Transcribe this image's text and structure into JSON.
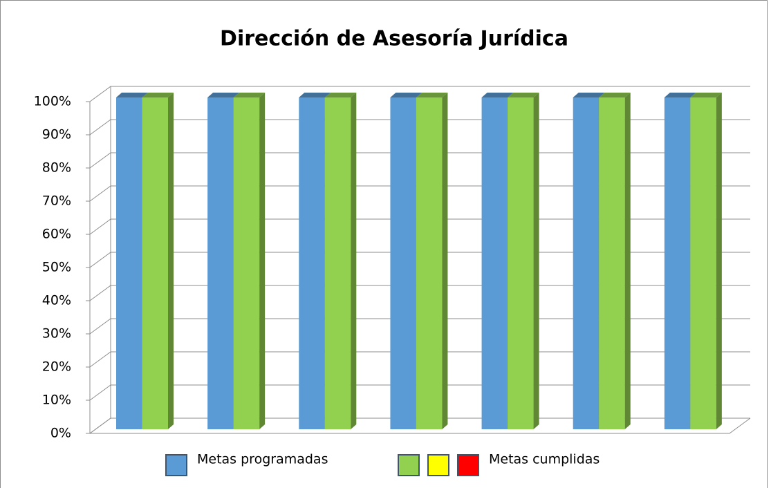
{
  "chart_data": {
    "type": "bar3d",
    "title": "Dirección de Asesoría Jurídica",
    "categories": [
      null,
      null,
      null,
      null,
      null,
      null,
      null
    ],
    "series": [
      {
        "name": "Metas programadas",
        "color": "#5b9bd5",
        "values": [
          100,
          100,
          100,
          100,
          100,
          100,
          100
        ]
      },
      {
        "name": "Metas cumplidas",
        "color": "#92d050",
        "extra_legend_colors": [
          "#ffff00",
          "#ff0000"
        ],
        "values": [
          100,
          100,
          100,
          100,
          100,
          100,
          100
        ]
      }
    ],
    "ylim": [
      0,
      100
    ],
    "yticks": [
      {
        "value": 0,
        "label": "0%"
      },
      {
        "value": 10,
        "label": "10%"
      },
      {
        "value": 20,
        "label": "20%"
      },
      {
        "value": 30,
        "label": "30%"
      },
      {
        "value": 40,
        "label": "40%"
      },
      {
        "value": 50,
        "label": "50%"
      },
      {
        "value": 60,
        "label": "60%"
      },
      {
        "value": 70,
        "label": "70%"
      },
      {
        "value": 80,
        "label": "80%"
      },
      {
        "value": 90,
        "label": "90%"
      },
      {
        "value": 100,
        "label": "100%"
      }
    ],
    "grid": true,
    "legend": "bottom"
  }
}
